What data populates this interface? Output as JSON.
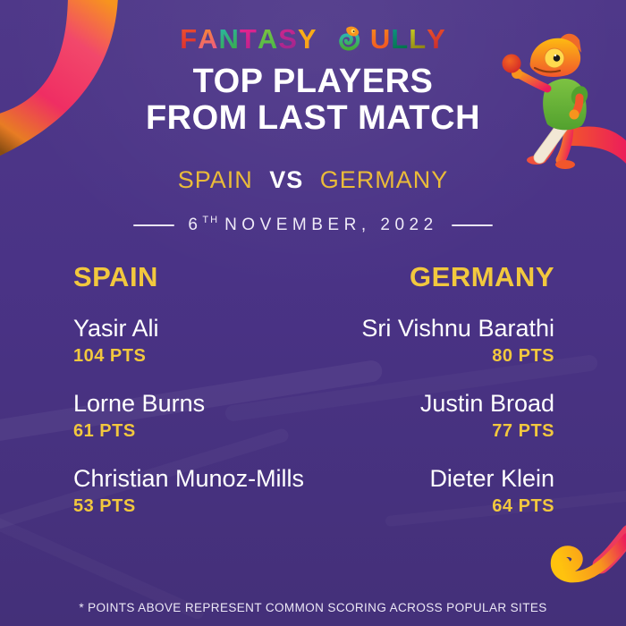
{
  "poster": {
    "logo_text": "FANTASY GULLY",
    "logo_letters": [
      {
        "ch": "F",
        "from": "#f1582f",
        "to": "#d5202e"
      },
      {
        "ch": "A",
        "from": "#f7941d",
        "to": "#ed4c9a"
      },
      {
        "ch": "N",
        "from": "#28b7b2",
        "to": "#3daa35"
      },
      {
        "ch": "T",
        "from": "#ec268f",
        "to": "#b4208c"
      },
      {
        "ch": "A",
        "from": "#8cc63f",
        "to": "#39b54a"
      },
      {
        "ch": "S",
        "from": "#d9258c",
        "to": "#92278f"
      },
      {
        "ch": "Y",
        "from": "#fdb913",
        "to": "#f7941d"
      },
      {
        "ch": " "
      },
      {
        "icon": "chameleon-g-icon"
      },
      {
        "ch": "U",
        "from": "#f7941d",
        "to": "#ef4123"
      },
      {
        "ch": "L",
        "from": "#0f9b8e",
        "to": "#006838"
      },
      {
        "ch": "L",
        "from": "#d7df23",
        "to": "#7a6a10"
      },
      {
        "ch": "Y",
        "from": "#f15a29",
        "to": "#be1e2d"
      }
    ],
    "title_line1": "TOP PLAYERS",
    "title_line2": "FROM LAST MATCH",
    "matchup": {
      "team1": "SPAIN",
      "vs": "VS",
      "team2": "GERMANY"
    },
    "date": {
      "day": "6",
      "suffix": "TH",
      "rest": "NOVEMBER, 2022"
    },
    "teams": [
      {
        "name": "SPAIN",
        "players": [
          {
            "name": "Yasir Ali",
            "points": "104 PTS"
          },
          {
            "name": "Lorne Burns",
            "points": "61 PTS"
          },
          {
            "name": "Christian Munoz-Mills",
            "points": "53 PTS"
          }
        ]
      },
      {
        "name": "GERMANY",
        "players": [
          {
            "name": "Sri Vishnu Barathi",
            "points": "80 PTS"
          },
          {
            "name": "Justin Broad",
            "points": "77 PTS"
          },
          {
            "name": "Dieter Klein",
            "points": "64 PTS"
          }
        ]
      }
    ],
    "footer_note": "* POINTS ABOVE REPRESENT COMMON SCORING ACROSS POPULAR SITES",
    "colors": {
      "background": "#4a3386",
      "accent_gold": "#f2c83e",
      "matchup_gold": "#eabb39",
      "white": "#ffffff",
      "mascot_green": "#7dc242",
      "mascot_orange": "#f7941d",
      "swirl_pink": "#ec1c5c",
      "swirl_yellow": "#ffc20e"
    },
    "icons": {
      "mascot": "chameleon-cricketer-mascot",
      "top_left": "ring-swoosh-decoration",
      "bottom_right": "tail-swirl-decoration"
    }
  }
}
